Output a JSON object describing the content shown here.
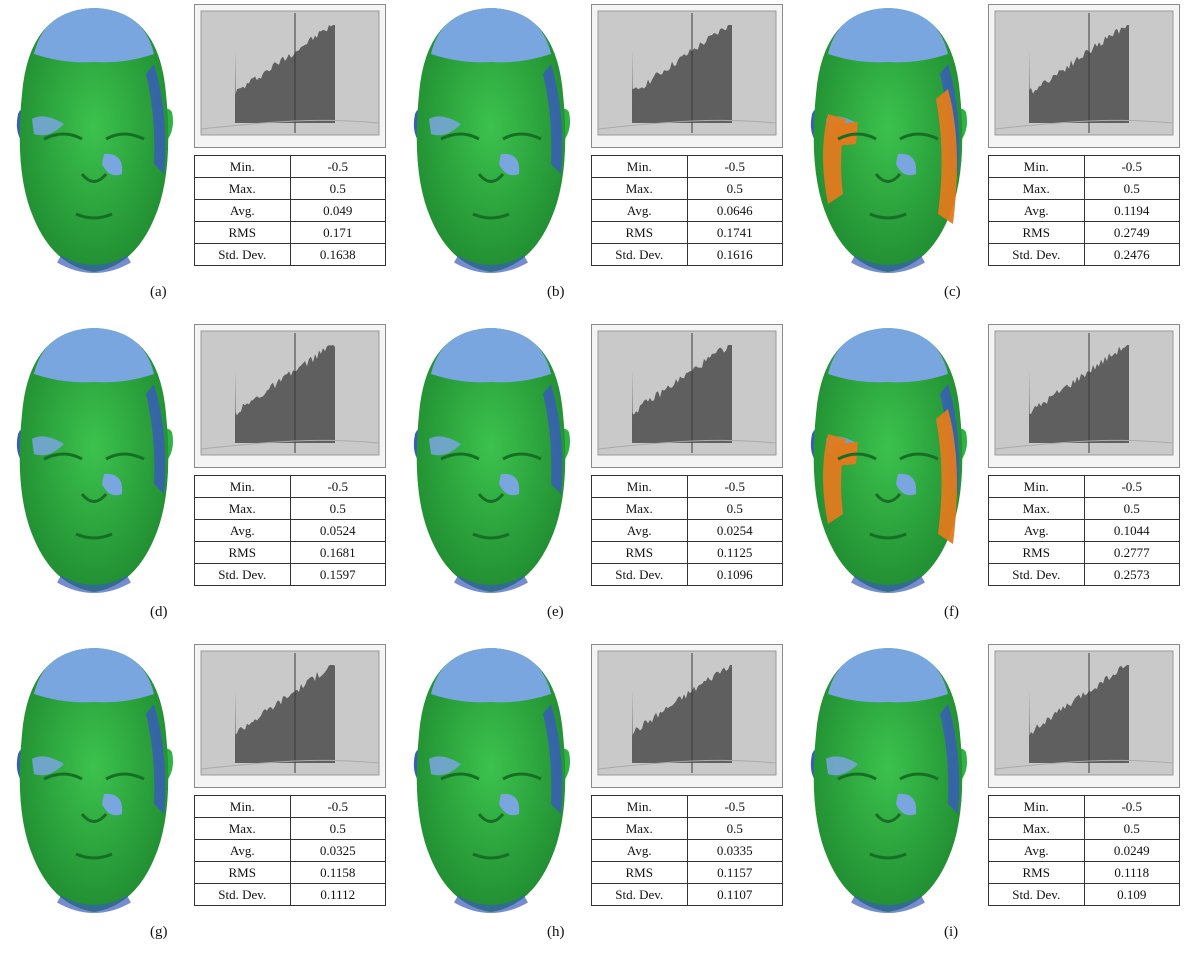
{
  "panels": [
    {
      "label": "(a)",
      "Min": "-0.5",
      "Max": "0.5",
      "Avg": "0.049",
      "RMS": "0.171",
      "StdDev": "0.1638",
      "variant": "normal"
    },
    {
      "label": "(b)",
      "Min": "-0.5",
      "Max": "0.5",
      "Avg": "0.0646",
      "RMS": "0.1741",
      "StdDev": "0.1616",
      "variant": "normal"
    },
    {
      "label": "(c)",
      "Min": "-0.5",
      "Max": "0.5",
      "Avg": "0.1194",
      "RMS": "0.2749",
      "StdDev": "0.2476",
      "variant": "orange"
    },
    {
      "label": "(d)",
      "Min": "-0.5",
      "Max": "0.5",
      "Avg": "0.0524",
      "RMS": "0.1681",
      "StdDev": "0.1597",
      "variant": "normal"
    },
    {
      "label": "(e)",
      "Min": "-0.5",
      "Max": "0.5",
      "Avg": "0.0254",
      "RMS": "0.1125",
      "StdDev": "0.1096",
      "variant": "normal"
    },
    {
      "label": "(f)",
      "Min": "-0.5",
      "Max": "0.5",
      "Avg": "0.1044",
      "RMS": "0.2777",
      "StdDev": "0.2573",
      "variant": "orange"
    },
    {
      "label": "(g)",
      "Min": "-0.5",
      "Max": "0.5",
      "Avg": "0.0325",
      "RMS": "0.1158",
      "StdDev": "0.1112",
      "variant": "normal"
    },
    {
      "label": "(h)",
      "Min": "-0.5",
      "Max": "0.5",
      "Avg": "0.0335",
      "RMS": "0.1157",
      "StdDev": "0.1107",
      "variant": "normal"
    },
    {
      "label": "(i)",
      "Min": "-0.5",
      "Max": "0.5",
      "Avg": "0.0249",
      "RMS": "0.1118",
      "StdDev": "0.109",
      "variant": "normal"
    }
  ],
  "row_labels": {
    "min": "Min.",
    "max": "Max.",
    "avg": "Avg.",
    "rms": "RMS",
    "std": "Std. Dev."
  },
  "colors": {
    "face": "#2fb342",
    "scalp": "#7aa6e0",
    "deviation_blue": "#3a5cb8",
    "orange": "#e07a1e"
  }
}
